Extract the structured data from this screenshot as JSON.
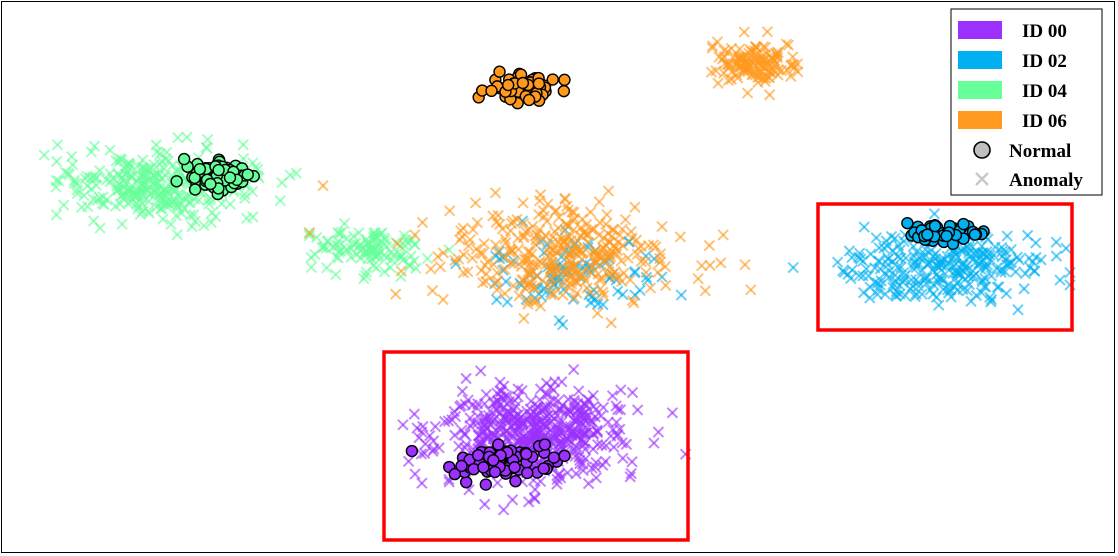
{
  "chart_data": {
    "type": "scatter",
    "title": "",
    "xlabel": "",
    "ylabel": "",
    "axes_visible": false,
    "grid": false,
    "legend_position": "top-right",
    "colors": {
      "ID 00": "#9b30ff",
      "ID 02": "#00b0f0",
      "ID 04": "#66ff99",
      "ID 06": "#ff9a1f",
      "normal_marker": "#bfbfbf",
      "anomaly_marker": "#c8c8c8",
      "highlight_box": "#ff0000"
    },
    "legend": {
      "classes": [
        "ID 00",
        "ID 02",
        "ID 04",
        "ID 06"
      ],
      "markers": [
        {
          "label": "Normal",
          "symbol": "circle"
        },
        {
          "label": "Anomaly",
          "symbol": "x"
        }
      ]
    },
    "clusters": [
      {
        "series": "ID 00",
        "kind": "Anomaly",
        "center": [
          535,
          435
        ],
        "spread": [
          85,
          45
        ],
        "count": 520
      },
      {
        "series": "ID 00",
        "kind": "Normal",
        "center": [
          500,
          462
        ],
        "spread": [
          55,
          22
        ],
        "count": 75
      },
      {
        "series": "ID 02",
        "kind": "Normal",
        "center": [
          945,
          232
        ],
        "spread": [
          38,
          11
        ],
        "count": 55
      },
      {
        "series": "ID 02",
        "kind": "Anomaly",
        "center": [
          945,
          268
        ],
        "spread": [
          95,
          30
        ],
        "count": 260
      },
      {
        "series": "ID 02",
        "kind": "Anomaly",
        "center": [
          570,
          275
        ],
        "spread": [
          90,
          35
        ],
        "count": 90
      },
      {
        "series": "ID 04",
        "kind": "Anomaly",
        "center": [
          160,
          185
        ],
        "spread": [
          85,
          32
        ],
        "count": 300
      },
      {
        "series": "ID 04",
        "kind": "Normal",
        "center": [
          220,
          175
        ],
        "spread": [
          38,
          18
        ],
        "count": 70
      },
      {
        "series": "ID 04",
        "kind": "Anomaly",
        "center": [
          370,
          250
        ],
        "spread": [
          55,
          20
        ],
        "count": 110
      },
      {
        "series": "ID 06",
        "kind": "Normal",
        "center": [
          522,
          88
        ],
        "spread": [
          32,
          14
        ],
        "count": 65
      },
      {
        "series": "ID 06",
        "kind": "Anomaly",
        "center": [
          755,
          62
        ],
        "spread": [
          40,
          18
        ],
        "count": 130
      },
      {
        "series": "ID 06",
        "kind": "Anomaly",
        "center": [
          560,
          255
        ],
        "spread": [
          110,
          45
        ],
        "count": 330
      }
    ],
    "highlight_boxes": [
      {
        "x": [
          818,
          1072
        ],
        "y": [
          204,
          330
        ]
      },
      {
        "x": [
          384,
          688
        ],
        "y": [
          352,
          540
        ]
      }
    ]
  }
}
